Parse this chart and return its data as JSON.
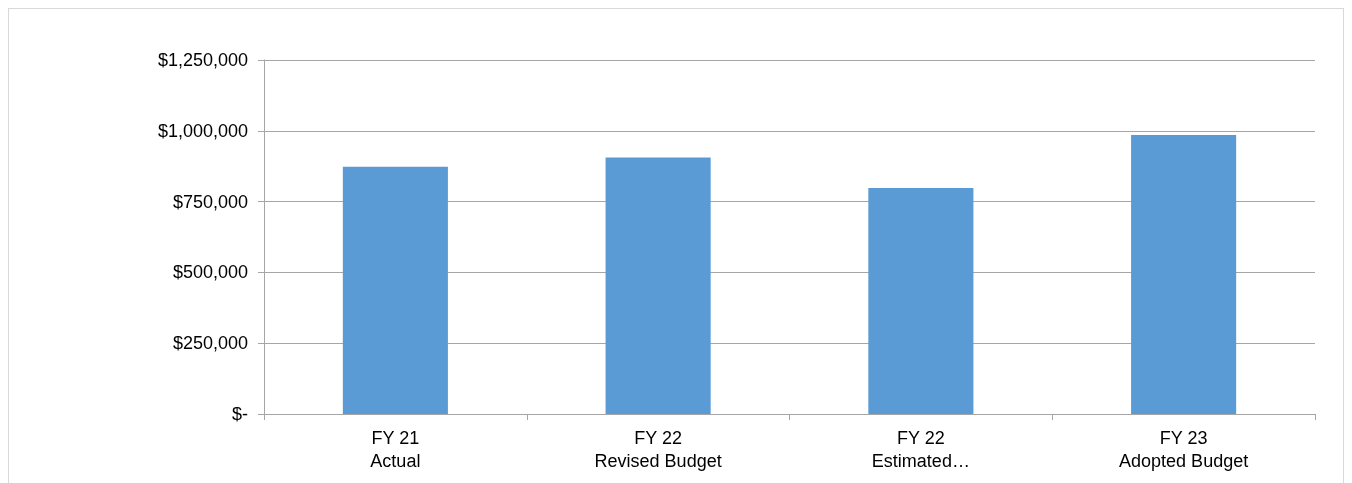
{
  "chart_data": {
    "type": "bar",
    "categories": [
      "FY 21\nActual",
      "FY 22\nRevised Budget",
      "FY 22\nEstimated…",
      "FY 23\nAdopted Budget"
    ],
    "values": [
      873000,
      906000,
      798000,
      985000
    ],
    "color": "#5b9bd5",
    "ylim": [
      0,
      1250000
    ],
    "yticks": [
      {
        "value": 0,
        "label": "$-"
      },
      {
        "value": 250000,
        "label": "$250,000"
      },
      {
        "value": 500000,
        "label": "$500,000"
      },
      {
        "value": 750000,
        "label": "$750,000"
      },
      {
        "value": 1000000,
        "label": "$1,000,000"
      },
      {
        "value": 1250000,
        "label": "$1,250,000"
      }
    ],
    "grid": "y"
  }
}
